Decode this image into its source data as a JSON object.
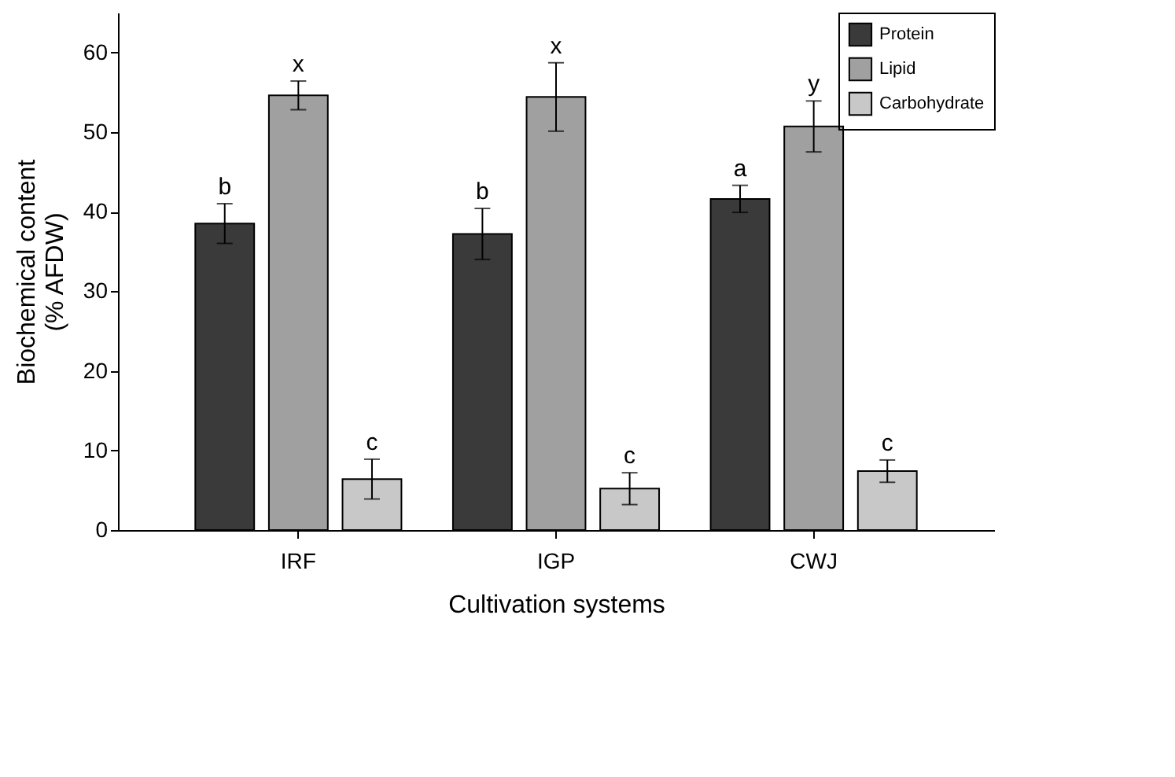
{
  "chart_data": {
    "type": "bar",
    "xlabel": "Cultivation systems",
    "ylabel": "Biochemical content\n(% AFDW)",
    "categories": [
      "IRF",
      "IGP",
      "CWJ"
    ],
    "series": [
      {
        "name": "Protein",
        "color": "#3a3a3a",
        "values": [
          38.5,
          37.2,
          41.6
        ],
        "errors": [
          2.5,
          3.2,
          1.7
        ]
      },
      {
        "name": "Lipid",
        "color": "#a0a0a0",
        "values": [
          54.6,
          54.4,
          50.7
        ],
        "errors": [
          1.8,
          4.3,
          3.2
        ]
      },
      {
        "name": "Carbohydrate",
        "color": "#c8c8c8",
        "values": [
          6.4,
          5.2,
          7.4
        ],
        "errors": [
          2.5,
          2.0,
          1.4
        ]
      }
    ],
    "ylim": [
      0,
      65
    ],
    "yticks": [
      0,
      10,
      20,
      30,
      40,
      50,
      60
    ],
    "grid": false,
    "legend": "top right",
    "annotations": [
      "b",
      "x",
      "c",
      "b",
      "x",
      "c",
      "a",
      "y",
      "c"
    ]
  }
}
